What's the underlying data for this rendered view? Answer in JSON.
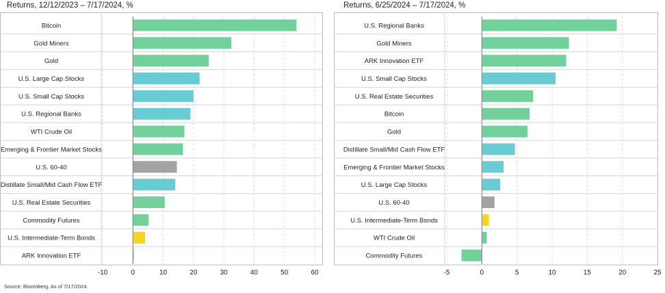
{
  "source_note": "Source: Bloomberg. As of 7/17/2024.",
  "colors": {
    "green": "#72d19b",
    "teal": "#69ccd2",
    "gray": "#a3a3a3",
    "yellow": "#f7d51e"
  },
  "chart_data": [
    {
      "type": "bar",
      "orientation": "horizontal",
      "title": "Returns, 12/12/2023 – 7/17/2024, %",
      "xlim": [
        -10,
        60
      ],
      "xticks": [
        "-10",
        "0",
        "10",
        "20",
        "30",
        "40",
        "50",
        "60"
      ],
      "grid": true,
      "categories": [
        "Bitcoin",
        "Gold Miners",
        "Gold",
        "U.S. Large Cap Stocks",
        "U.S. Small Cap Stocks",
        "U.S. Regional Banks",
        "WTI Crude Oil",
        "Emerging & Frontier Market Stocks",
        "U.S. 60-40",
        "Distillate Small/Mid Cash Flow ETF",
        "U.S. Real Estate Securities",
        "Commodity Futures",
        "U.S. Intermediate-Term Bonds",
        "ARK Innovation ETF"
      ],
      "values": [
        54,
        32.5,
        25,
        22,
        20,
        19,
        17,
        16.5,
        14.5,
        14,
        10.5,
        5.2,
        4,
        0.3
      ],
      "bar_colors": [
        "green",
        "green",
        "green",
        "teal",
        "teal",
        "teal",
        "green",
        "green",
        "gray",
        "teal",
        "green",
        "green",
        "yellow",
        "green"
      ]
    },
    {
      "type": "bar",
      "orientation": "horizontal",
      "title": "Returns, 6/25/2024 – 7/17/2024, %",
      "xlim": [
        -5,
        25
      ],
      "xticks": [
        "-5",
        "0",
        "5",
        "10",
        "15",
        "20",
        "25"
      ],
      "grid": true,
      "categories": [
        "U.S. Regional Banks",
        "Gold Miners",
        "ARK Innovation ETF",
        "U.S. Small Cap Stocks",
        "U.S. Real Estate Securities",
        "Bitcoin",
        "Gold",
        "Distillate Small/Mid Cash Flow ETF",
        "Emerging & Frontier Market Stocks",
        "U.S. Large Cap Stocks",
        "U.S. 60-40",
        "U.S. Intermediate-Term Bonds",
        "WTI Crude Oil",
        "Commodity Futures"
      ],
      "values": [
        19.2,
        12.4,
        12,
        10.5,
        7.3,
        6.8,
        6.5,
        4.7,
        3.1,
        2.6,
        1.8,
        1,
        0.7,
        -2.9
      ],
      "bar_colors": [
        "green",
        "green",
        "green",
        "teal",
        "green",
        "green",
        "green",
        "teal",
        "teal",
        "teal",
        "gray",
        "yellow",
        "green",
        "green"
      ]
    }
  ]
}
